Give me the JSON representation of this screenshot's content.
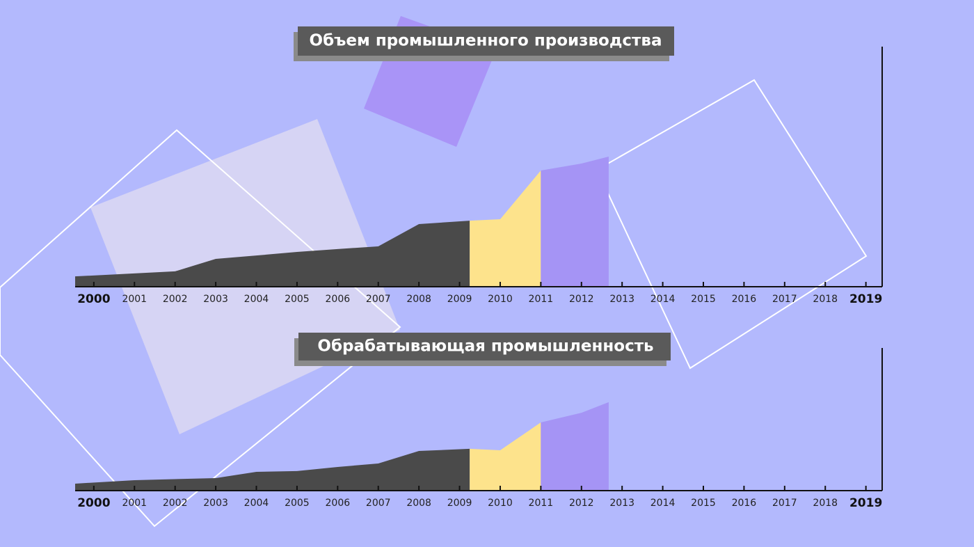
{
  "chart_data": [
    {
      "type": "area",
      "title": "Объем промышленного производства",
      "xlim": [
        1999.54,
        2019.4
      ],
      "ylim": [
        0,
        100
      ],
      "xticks": [
        2000,
        2001,
        2002,
        2003,
        2004,
        2005,
        2006,
        2007,
        2008,
        2009,
        2010,
        2011,
        2012,
        2013,
        2014,
        2015,
        2016,
        2017,
        2018,
        2019
      ],
      "series": [
        {
          "color": "#4a4a4a",
          "x": [
            1999.54,
            2002,
            2003,
            2004,
            2005,
            2006,
            2007,
            2008,
            2009.25
          ],
          "values": [
            4.3,
            6.4,
            11.6,
            13,
            14.5,
            15.7,
            16.8,
            26.1,
            27.5
          ]
        },
        {
          "color": "#fde38c",
          "x": [
            2009.25,
            2010,
            2011
          ],
          "values": [
            27.5,
            28.1,
            48.4
          ]
        },
        {
          "color": "#a594f5",
          "x": [
            2011,
            2012,
            2012.67
          ],
          "values": [
            48.4,
            51.3,
            54.2
          ]
        }
      ]
    },
    {
      "type": "area",
      "title": "Обрабатывающая промышленность",
      "xlim": [
        1999.54,
        2019.4
      ],
      "ylim": [
        0,
        100
      ],
      "xticks": [
        2000,
        2001,
        2002,
        2003,
        2004,
        2005,
        2006,
        2007,
        2008,
        2009,
        2010,
        2011,
        2012,
        2013,
        2014,
        2015,
        2016,
        2017,
        2018,
        2019
      ],
      "series": [
        {
          "color": "#4a4a4a",
          "x": [
            1999.54,
            2001,
            2003,
            2004,
            2005,
            2006,
            2007,
            2008,
            2009.25
          ],
          "values": [
            4.9,
            7.3,
            8.8,
            13.2,
            13.7,
            16.6,
            19,
            27.8,
            29.3
          ]
        },
        {
          "color": "#fde38c",
          "x": [
            2009.25,
            2010,
            2011
          ],
          "values": [
            29.3,
            28.3,
            47.8
          ]
        },
        {
          "color": "#a594f5",
          "x": [
            2011,
            2012,
            2012.67
          ],
          "values": [
            47.8,
            54.6,
            62
          ]
        }
      ]
    }
  ]
}
